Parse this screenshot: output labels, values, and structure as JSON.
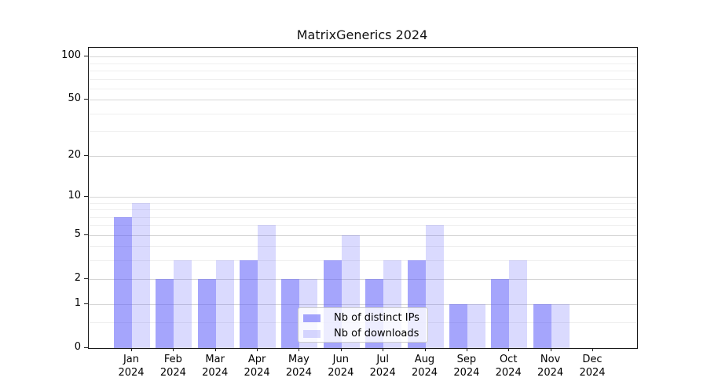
{
  "chart_data": {
    "type": "bar",
    "title": "MatrixGenerics 2024",
    "categories": [
      "Jan 2024",
      "Feb 2024",
      "Mar 2024",
      "Apr 2024",
      "May 2024",
      "Jun 2024",
      "Jul 2024",
      "Aug 2024",
      "Sep 2024",
      "Oct 2024",
      "Nov 2024",
      "Dec 2024"
    ],
    "series": [
      {
        "name": "Nb of distinct IPs",
        "fill": "rgba(85,85,250,0.53)",
        "values": [
          7,
          2,
          2,
          3,
          2,
          3,
          2,
          3,
          1,
          2,
          1,
          0
        ]
      },
      {
        "name": "Nb of downloads",
        "fill": "rgba(85,85,250,0.22)",
        "values": [
          9,
          3,
          3,
          6,
          2,
          5,
          3,
          6,
          1,
          3,
          1,
          0
        ]
      }
    ],
    "yscale": "log10(1+y)",
    "ylim": [
      0,
      115
    ],
    "yticks": [
      0,
      1,
      2,
      5,
      10,
      20,
      50,
      100
    ],
    "minor_gridlines": [
      0.5,
      3,
      4,
      6,
      7,
      8,
      9,
      30,
      40,
      60,
      70,
      80,
      90
    ],
    "grid": "horizontal",
    "legend_position": "lower center",
    "colors": {
      "major_grid": "#d6d6d6",
      "minor_grid": "#efefef",
      "spine": "#1a1a1a",
      "text": "#000000"
    }
  }
}
